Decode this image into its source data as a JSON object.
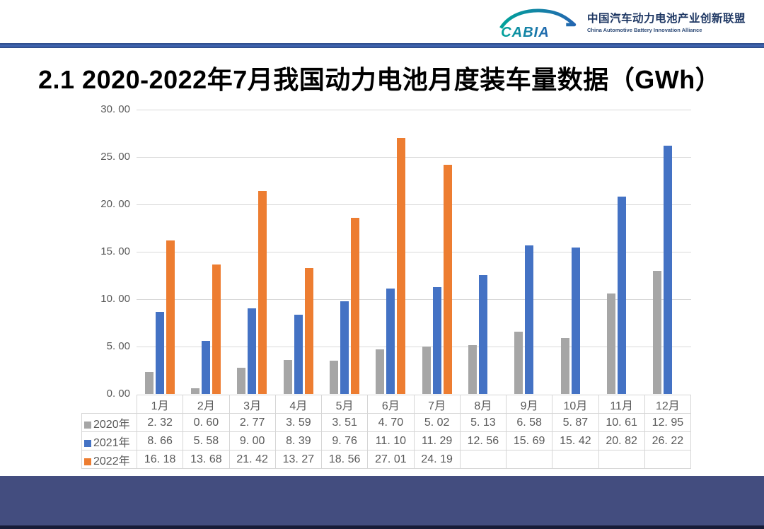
{
  "header": {
    "logo_text": "CABIA",
    "org_name_cn": "中国汽车动力电池产业创新联盟",
    "org_name_en": "China Automotive Battery Innovation Alliance"
  },
  "title": "2.1 2020-2022年7月我国动力电池月度装车量数据（GWh）",
  "colors": {
    "series_2020": "#A6A6A6",
    "series_2021": "#4472C4",
    "series_2022": "#ED7D31",
    "gridline": "#D9D9D9",
    "axis_text": "#595959",
    "divider_blue": "#3E63AE",
    "footer_navy": "#434D7F",
    "footer_strip": "#171C38"
  },
  "chart_data": {
    "type": "bar",
    "title": "2.1 2020-2022年7月我国动力电池月度装车量数据（GWh）",
    "xlabel": "",
    "ylabel": "",
    "categories": [
      "1月",
      "2月",
      "3月",
      "4月",
      "5月",
      "6月",
      "7月",
      "8月",
      "9月",
      "10月",
      "11月",
      "12月"
    ],
    "series": [
      {
        "name": "2020年",
        "color": "#A6A6A6",
        "values": [
          2.32,
          0.6,
          2.77,
          3.59,
          3.51,
          4.7,
          5.02,
          5.13,
          6.58,
          5.87,
          10.61,
          12.95
        ]
      },
      {
        "name": "2021年",
        "color": "#4472C4",
        "values": [
          8.66,
          5.58,
          9.0,
          8.39,
          9.76,
          11.1,
          11.29,
          12.56,
          15.69,
          15.42,
          20.82,
          26.22
        ]
      },
      {
        "name": "2022年",
        "color": "#ED7D31",
        "values": [
          16.18,
          13.68,
          21.42,
          13.27,
          18.56,
          27.01,
          24.19,
          null,
          null,
          null,
          null,
          null
        ]
      }
    ],
    "ylim": [
      0,
      30
    ],
    "ytick_step": 5,
    "ytick_labels": [
      "0. 00",
      "5. 00",
      "10. 00",
      "15. 00",
      "20. 00",
      "25. 00",
      "30. 00"
    ],
    "grid": true,
    "legend_position": "data-table-left"
  },
  "table": {
    "rows": [
      {
        "label": "2020年",
        "color": "#A6A6A6",
        "cells": [
          "2. 32",
          "0. 60",
          "2. 77",
          "3. 59",
          "3. 51",
          "4. 70",
          "5. 02",
          "5. 13",
          "6. 58",
          "5. 87",
          "10. 61",
          "12. 95"
        ]
      },
      {
        "label": "2021年",
        "color": "#4472C4",
        "cells": [
          "8. 66",
          "5. 58",
          "9. 00",
          "8. 39",
          "9. 76",
          "11. 10",
          "11. 29",
          "12. 56",
          "15. 69",
          "15. 42",
          "20. 82",
          "26. 22"
        ]
      },
      {
        "label": "2022年",
        "color": "#ED7D31",
        "cells": [
          "16. 18",
          "13. 68",
          "21. 42",
          "13. 27",
          "18. 56",
          "27. 01",
          "24. 19",
          "",
          "",
          "",
          "",
          ""
        ]
      }
    ]
  }
}
